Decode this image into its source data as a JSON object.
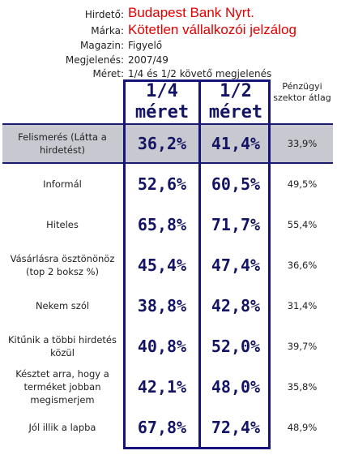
{
  "header": {
    "advertiser_label": "Hirdető:",
    "advertiser": "Budapest Bank Nyrt.",
    "brand_label": "Márka:",
    "brand": "Kötetlen vállalkozói jelzálog",
    "magazine_label": "Magazin:",
    "magazine": "Figyelő",
    "appearance_label": "Megjelenés:",
    "appearance": "2007/49",
    "size_label": "Méret:",
    "size": "1/4 és 1/2 követő megjelenés"
  },
  "columns": {
    "col1": "1/4 méret",
    "col1_line1": "1/4",
    "col1_line2": "méret",
    "col2_line1": "1/2",
    "col2_line2": "méret",
    "col3": "Pénzügyi szektor átlag"
  },
  "rows": [
    {
      "label": "Felismerés (Látta a hirdetést)",
      "v1": "36,2%",
      "v2": "41,4%",
      "avg": "33,9%"
    },
    {
      "label": "Informál",
      "v1": "52,6%",
      "v2": "60,5%",
      "avg": "49,5%"
    },
    {
      "label": "Hiteles",
      "v1": "65,8%",
      "v2": "71,7%",
      "avg": "55,4%"
    },
    {
      "label": "Vásárlásra ösztönönöz (top 2 boksz %)",
      "v1": "45,4%",
      "v2": "47,4%",
      "avg": "36,6%"
    },
    {
      "label": "Nekem szól",
      "v1": "38,8%",
      "v2": "42,8%",
      "avg": "31,4%"
    },
    {
      "label": "Kitűnik a többi hirdetés közül",
      "v1": "40,8%",
      "v2": "52,0%",
      "avg": "39,7%"
    },
    {
      "label": "Késztet arra, hogy a terméket jobban megismerjem",
      "v1": "42,1%",
      "v2": "48,0%",
      "avg": "35,8%"
    },
    {
      "label": "Jól illik a lapba",
      "v1": "67,8%",
      "v2": "72,4%",
      "avg": "48,9%"
    }
  ]
}
